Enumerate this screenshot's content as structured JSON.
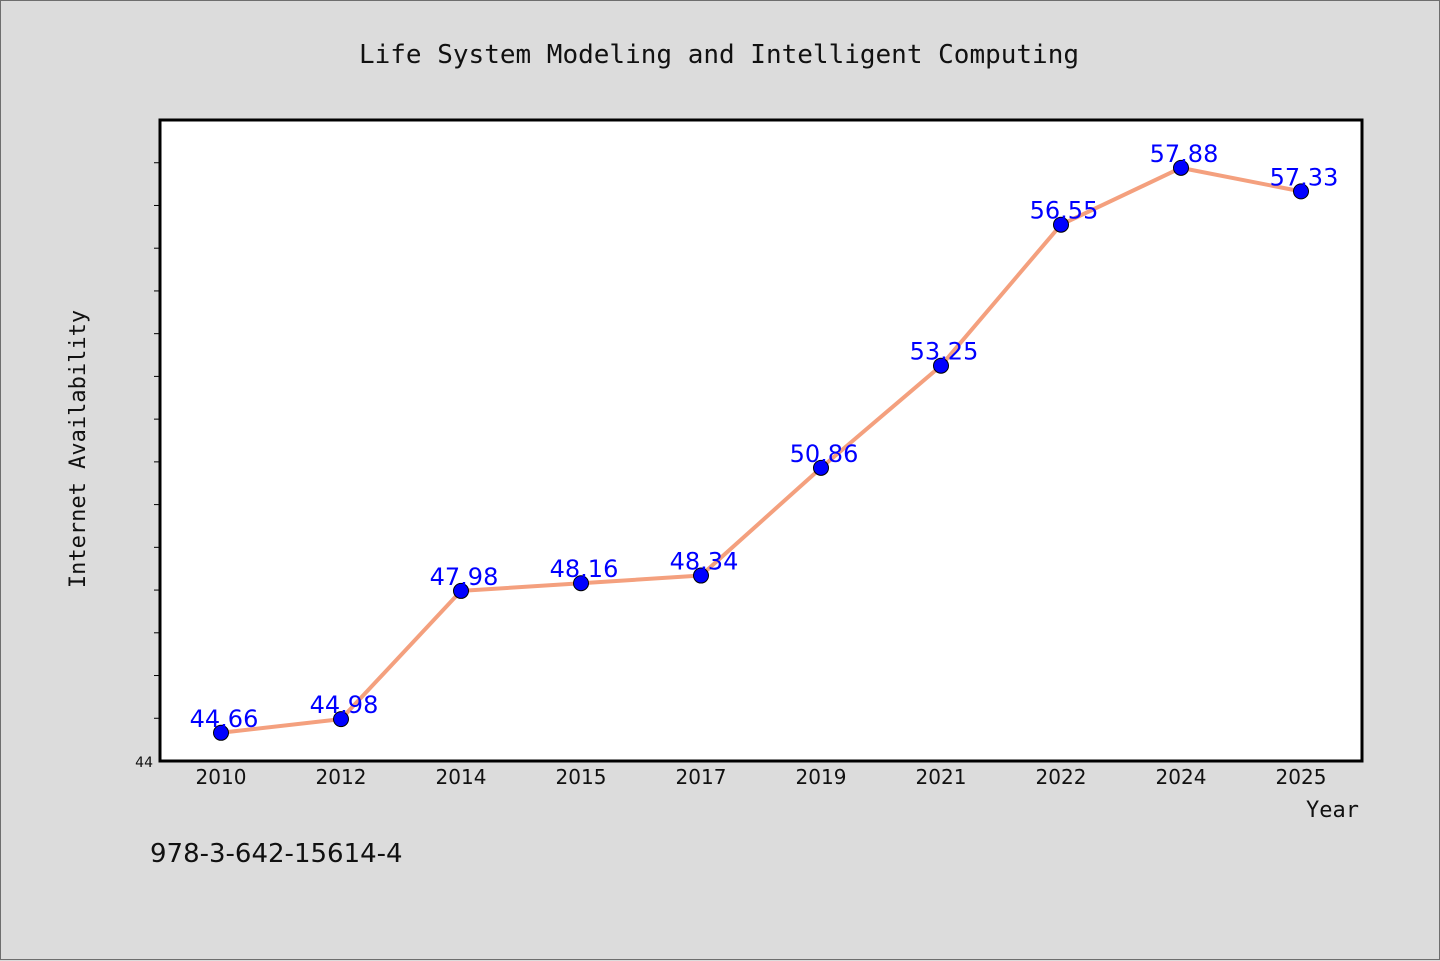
{
  "chart_data": {
    "type": "line",
    "title": "Life System Modeling and Intelligent Computing",
    "xlabel": "Year",
    "ylabel": "Internet Availability",
    "categories": [
      "2010",
      "2012",
      "2014",
      "2015",
      "2017",
      "2019",
      "2021",
      "2022",
      "2024",
      "2025"
    ],
    "series": [
      {
        "values": [
          44.66,
          44.98,
          47.98,
          48.16,
          48.34,
          50.86,
          53.25,
          56.55,
          57.88,
          57.33
        ],
        "line_color": "#f4a07e",
        "marker_color": "#0000ff"
      }
    ],
    "data_labels": [
      "44.66",
      "44.98",
      "47.98",
      "48.16",
      "48.34",
      "50.86",
      "53.25",
      "56.55",
      "57.88",
      "57.33"
    ],
    "ylim": [
      44,
      59
    ],
    "y_tick_labels": [
      "44"
    ],
    "grid": false,
    "data_label_color": "#0000ff"
  },
  "footnote": "978-3-642-15614-4"
}
